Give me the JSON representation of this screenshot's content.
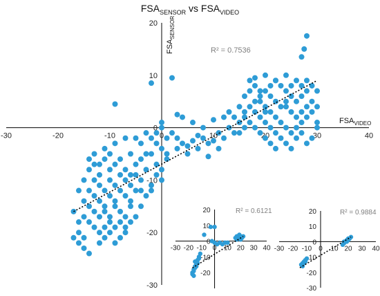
{
  "chart_data": [
    {
      "type": "scatter",
      "title": {
        "main": "FSA",
        "sub": "SENSOR",
        "vs": " vs FSA",
        "sub2": "VIDEO"
      },
      "xlabel": {
        "main": "FSA",
        "sub": "VIDEO"
      },
      "ylabel": {
        "main": "FSA",
        "sub": "SENSOR"
      },
      "xlim": [
        -30,
        40
      ],
      "ylim": [
        -30,
        20
      ],
      "xticks": [
        "-30",
        "-20",
        "-10",
        "0",
        "10",
        "20",
        "30",
        "40"
      ],
      "yticks": [
        "20",
        "10",
        "0",
        "-10",
        "-20",
        "-30"
      ],
      "r2": "R² = 0.7536",
      "trendline": {
        "x": [
          -17,
          30
        ],
        "y": [
          -16,
          9
        ]
      },
      "color": "#2e9cd6",
      "points": [
        [
          -9,
          4.5
        ],
        [
          -2,
          8.5
        ],
        [
          2,
          9.5
        ],
        [
          28,
          17.5
        ],
        [
          27.5,
          15
        ],
        [
          27,
          13.5
        ],
        [
          0,
          1
        ],
        [
          0,
          0
        ],
        [
          -1,
          -1
        ],
        [
          1,
          -2
        ],
        [
          -1,
          -3
        ],
        [
          0,
          -4
        ],
        [
          -2,
          -5
        ],
        [
          1,
          -6
        ],
        [
          -1,
          -7
        ],
        [
          0,
          -8
        ],
        [
          -1,
          -9
        ],
        [
          0,
          -10
        ],
        [
          -2,
          -11
        ],
        [
          1,
          -5
        ],
        [
          2,
          -1
        ],
        [
          3,
          -2
        ],
        [
          4,
          -3
        ],
        [
          5,
          -3.5
        ],
        [
          6,
          -2.5
        ],
        [
          7,
          -1.5
        ],
        [
          8,
          -2
        ],
        [
          9,
          -3
        ],
        [
          3,
          -4
        ],
        [
          5,
          -5
        ],
        [
          7,
          -4
        ],
        [
          10,
          -2.5
        ],
        [
          11,
          -1
        ],
        [
          12,
          -2
        ],
        [
          13,
          0
        ],
        [
          14,
          -1
        ],
        [
          15,
          1
        ],
        [
          16,
          0
        ],
        [
          4,
          2
        ],
        [
          3,
          2.5
        ],
        [
          6,
          1
        ],
        [
          8,
          0
        ],
        [
          10,
          1.5
        ],
        [
          12,
          2
        ],
        [
          9,
          -5.5
        ],
        [
          11,
          -4
        ],
        [
          -14,
          -8
        ],
        [
          -13,
          -7
        ],
        [
          -12,
          -9
        ],
        [
          -11,
          -6
        ],
        [
          -10,
          -8
        ],
        [
          -9,
          -7
        ],
        [
          -8,
          -6
        ],
        [
          -7,
          -8
        ],
        [
          -6,
          -5
        ],
        [
          -5,
          -7
        ],
        [
          -4,
          -6
        ],
        [
          -3,
          -5
        ],
        [
          -13,
          -10
        ],
        [
          -12,
          -11
        ],
        [
          -11,
          -12
        ],
        [
          -10,
          -10
        ],
        [
          -9,
          -11
        ],
        [
          -8,
          -9
        ],
        [
          -7,
          -10
        ],
        [
          -6,
          -11
        ],
        [
          -5,
          -9
        ],
        [
          -4,
          -10
        ],
        [
          -3,
          -8
        ],
        [
          -14,
          -12
        ],
        [
          -13,
          -13
        ],
        [
          -12,
          -14
        ],
        [
          -11,
          -15
        ],
        [
          -10,
          -13
        ],
        [
          -9,
          -14
        ],
        [
          -8,
          -12
        ],
        [
          -7,
          -13
        ],
        [
          -6,
          -14
        ],
        [
          -5,
          -12
        ],
        [
          -15,
          -14
        ],
        [
          -14,
          -15
        ],
        [
          -13,
          -16
        ],
        [
          -12,
          -17
        ],
        [
          -11,
          -16
        ],
        [
          -10,
          -17
        ],
        [
          -9,
          -15
        ],
        [
          -8,
          -16
        ],
        [
          -7,
          -17
        ],
        [
          -6,
          -15
        ],
        [
          -15,
          -17
        ],
        [
          -14,
          -18
        ],
        [
          -13,
          -19
        ],
        [
          -12,
          -20
        ],
        [
          -11,
          -19
        ],
        [
          -10,
          -18
        ],
        [
          -9,
          -19
        ],
        [
          -8,
          -18
        ],
        [
          -7,
          -20
        ],
        [
          -16,
          -18
        ],
        [
          -17,
          -21
        ],
        [
          -16,
          -22
        ],
        [
          -15,
          -23
        ],
        [
          -14,
          -24
        ],
        [
          -16,
          -20
        ],
        [
          -15,
          -21
        ],
        [
          -12,
          -22
        ],
        [
          -11,
          -21
        ],
        [
          -10,
          -20
        ],
        [
          -9,
          -22
        ],
        [
          -8,
          -21
        ],
        [
          -7,
          -19
        ],
        [
          -6,
          -18
        ],
        [
          -5,
          -17
        ],
        [
          -4,
          -15
        ],
        [
          -3,
          -13
        ],
        [
          -2,
          -12
        ],
        [
          -14,
          -6
        ],
        [
          -13,
          -5
        ],
        [
          -11,
          -4
        ],
        [
          -9,
          -3
        ],
        [
          -7,
          -2
        ],
        [
          -5,
          -2
        ],
        [
          -4,
          -3
        ],
        [
          -3,
          -1
        ],
        [
          -2,
          -2
        ],
        [
          -16,
          -12
        ],
        [
          -15,
          -10
        ],
        [
          -17,
          -16
        ],
        [
          -12,
          -7
        ],
        [
          -10,
          -5
        ],
        [
          -6,
          -9
        ],
        [
          -4,
          -12
        ],
        [
          16,
          3
        ],
        [
          17,
          4
        ],
        [
          18,
          5
        ],
        [
          19,
          6
        ],
        [
          20,
          7
        ],
        [
          21,
          8
        ],
        [
          22,
          9
        ],
        [
          23,
          8
        ],
        [
          24,
          7
        ],
        [
          25,
          6
        ],
        [
          26,
          5
        ],
        [
          27,
          6
        ],
        [
          28,
          7
        ],
        [
          29,
          8
        ],
        [
          30,
          7
        ],
        [
          16,
          6
        ],
        [
          17,
          7
        ],
        [
          18,
          8
        ],
        [
          19,
          5
        ],
        [
          20,
          4
        ],
        [
          21,
          3
        ],
        [
          22,
          2
        ],
        [
          23,
          1
        ],
        [
          24,
          0
        ],
        [
          25,
          -1
        ],
        [
          26,
          0
        ],
        [
          27,
          1
        ],
        [
          28,
          2
        ],
        [
          29,
          3
        ],
        [
          30,
          4
        ],
        [
          17,
          1
        ],
        [
          18,
          0
        ],
        [
          19,
          -1
        ],
        [
          20,
          -2
        ],
        [
          21,
          -3
        ],
        [
          22,
          -4
        ],
        [
          23,
          -2
        ],
        [
          24,
          -3
        ],
        [
          25,
          -4
        ],
        [
          26,
          -2
        ],
        [
          27,
          -1
        ],
        [
          28,
          -3
        ],
        [
          29,
          -2
        ],
        [
          30,
          1
        ],
        [
          30,
          0
        ],
        [
          18,
          3
        ],
        [
          19,
          2
        ],
        [
          20,
          1
        ],
        [
          21,
          0
        ],
        [
          22,
          -1
        ],
        [
          23,
          4
        ],
        [
          24,
          5
        ],
        [
          25,
          3
        ],
        [
          26,
          2
        ],
        [
          27,
          3
        ],
        [
          28,
          4
        ],
        [
          29,
          5
        ],
        [
          16,
          2
        ],
        [
          17,
          9
        ],
        [
          18,
          9.5
        ],
        [
          20,
          10
        ],
        [
          22,
          9
        ],
        [
          24,
          10
        ],
        [
          26,
          9
        ],
        [
          27,
          8
        ],
        [
          28,
          9
        ],
        [
          24,
          4
        ],
        [
          21,
          6
        ],
        [
          19,
          7
        ],
        [
          15,
          4
        ],
        [
          14,
          2
        ],
        [
          15,
          -1
        ],
        [
          13,
          3
        ],
        [
          20,
          3
        ],
        [
          22,
          5
        ],
        [
          25,
          8
        ]
      ]
    },
    {
      "type": "scatter",
      "xlim": [
        -30,
        40
      ],
      "ylim": [
        -30,
        20
      ],
      "xticks": [
        "-30",
        "-20",
        "-10",
        "0",
        "10",
        "20",
        "30",
        "40"
      ],
      "yticks": [
        "20",
        "10",
        "0",
        "-10",
        "-20"
      ],
      "r2": "R² = 0.6121",
      "trendline": {
        "x": [
          -17,
          22
        ],
        "y": [
          -17,
          3
        ]
      },
      "points": [
        [
          -17,
          -20
        ],
        [
          -16,
          -19
        ],
        [
          -16,
          -18
        ],
        [
          -15,
          -17
        ],
        [
          -15,
          -16
        ],
        [
          -14,
          -16
        ],
        [
          -14,
          -15
        ],
        [
          -13,
          -14
        ],
        [
          -17,
          -21
        ],
        [
          -16,
          -22
        ],
        [
          -15,
          -13
        ],
        [
          -13,
          -12
        ],
        [
          -12,
          -10
        ],
        [
          -11,
          -8
        ],
        [
          -12,
          -11
        ],
        [
          -14,
          -13
        ],
        [
          -8,
          4
        ],
        [
          -3,
          9
        ],
        [
          0,
          9
        ],
        [
          -2,
          0
        ],
        [
          0,
          -1
        ],
        [
          2,
          -2
        ],
        [
          4,
          -1
        ],
        [
          6,
          -2
        ],
        [
          8,
          -1
        ],
        [
          10,
          -1
        ],
        [
          16,
          2
        ],
        [
          17,
          3
        ],
        [
          18,
          3
        ],
        [
          19,
          4
        ],
        [
          20,
          3
        ],
        [
          21,
          2
        ],
        [
          22,
          3
        ],
        [
          17,
          1
        ],
        [
          19,
          2
        ],
        [
          20,
          1
        ]
      ]
    },
    {
      "type": "scatter",
      "xlim": [
        -30,
        40
      ],
      "ylim": [
        -30,
        20
      ],
      "xticks": [
        "-30",
        "-20",
        "-10",
        "0",
        "10",
        "20",
        "30",
        "40"
      ],
      "yticks": [
        "20",
        "10",
        "0",
        "-10",
        "-20",
        "-30"
      ],
      "r2": "R² = 0.9884",
      "trendline": {
        "x": [
          -15,
          22
        ],
        "y": [
          -17,
          3
        ]
      },
      "points": [
        [
          -14,
          -15
        ],
        [
          -13,
          -14
        ],
        [
          -12,
          -13
        ],
        [
          -11,
          -12
        ],
        [
          -10,
          -11
        ],
        [
          -12,
          -14
        ],
        [
          -13,
          -16
        ],
        [
          -11,
          -13
        ],
        [
          16,
          -2
        ],
        [
          17,
          -1
        ],
        [
          18,
          0
        ],
        [
          19,
          1
        ],
        [
          20,
          2
        ],
        [
          21,
          2
        ],
        [
          22,
          3
        ],
        [
          17,
          0
        ],
        [
          19,
          0
        ],
        [
          20,
          1
        ]
      ]
    }
  ]
}
